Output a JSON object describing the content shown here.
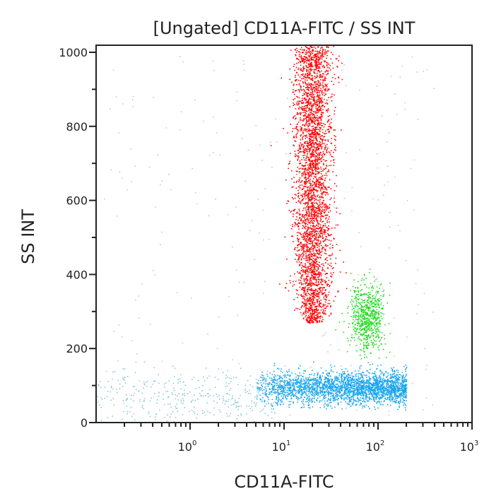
{
  "chart_data": {
    "type": "scatter",
    "title": "[Ungated] CD11A-FITC / SS INT",
    "xlabel": "CD11A-FITC",
    "ylabel": "SS INT",
    "x_scale": "log",
    "xlim": [
      0.1,
      1000
    ],
    "ylim": [
      0,
      1020
    ],
    "x_ticks": [
      {
        "value": 1,
        "label": "10",
        "exp": "0"
      },
      {
        "value": 10,
        "label": "10",
        "exp": "1"
      },
      {
        "value": 100,
        "label": "10",
        "exp": "2"
      },
      {
        "value": 1000,
        "label": "10",
        "exp": "3"
      }
    ],
    "y_ticks": [
      {
        "value": 0,
        "label": "0"
      },
      {
        "value": 200,
        "label": "200"
      },
      {
        "value": 400,
        "label": "400"
      },
      {
        "value": 600,
        "label": "600"
      },
      {
        "value": 800,
        "label": "800"
      },
      {
        "value": 1000,
        "label": "1000"
      }
    ],
    "grid": false,
    "populations": [
      {
        "color": "#ff0000",
        "log10_x_center": 1.3,
        "log10_x_sd": 0.1,
        "y_range": [
          270,
          1020
        ],
        "count": 3500
      },
      {
        "color": "#22dd22",
        "log10_x_center": 1.88,
        "log10_x_sd": 0.09,
        "y_center": 285,
        "y_sd": 45,
        "count": 700
      },
      {
        "color": "#1aa6ee",
        "log10_x_range": [
          0.7,
          2.3
        ],
        "y_center": 95,
        "y_sd": 22,
        "count": 2600
      },
      {
        "color": "#8cc8d8",
        "log10_x_range": [
          -1,
          0.9
        ],
        "y_center": 70,
        "y_sd": 40,
        "count": 350
      },
      {
        "color": "#c8c8c8",
        "log10_x_range": [
          -1,
          2.6
        ],
        "y_range": [
          0,
          1000
        ],
        "count": 250
      }
    ]
  }
}
